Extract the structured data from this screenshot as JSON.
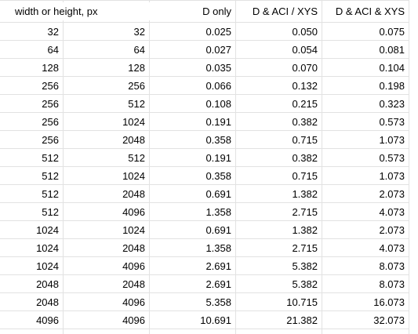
{
  "header": [
    "width or height, px",
    "D only",
    "D & ACI / XYS",
    "D & ACI & XYS"
  ],
  "rows": [
    [
      "32",
      "32",
      "0.025",
      "0.050",
      "0.075"
    ],
    [
      "64",
      "64",
      "0.027",
      "0.054",
      "0.081"
    ],
    [
      "128",
      "128",
      "0.035",
      "0.070",
      "0.104"
    ],
    [
      "256",
      "256",
      "0.066",
      "0.132",
      "0.198"
    ],
    [
      "256",
      "512",
      "0.108",
      "0.215",
      "0.323"
    ],
    [
      "256",
      "1024",
      "0.191",
      "0.382",
      "0.573"
    ],
    [
      "256",
      "2048",
      "0.358",
      "0.715",
      "1.073"
    ],
    [
      "512",
      "512",
      "0.191",
      "0.382",
      "0.573"
    ],
    [
      "512",
      "1024",
      "0.358",
      "0.715",
      "1.073"
    ],
    [
      "512",
      "2048",
      "0.691",
      "1.382",
      "2.073"
    ],
    [
      "512",
      "4096",
      "1.358",
      "2.715",
      "4.073"
    ],
    [
      "1024",
      "1024",
      "0.691",
      "1.382",
      "2.073"
    ],
    [
      "1024",
      "2048",
      "1.358",
      "2.715",
      "4.073"
    ],
    [
      "1024",
      "4096",
      "2.691",
      "5.382",
      "8.073"
    ],
    [
      "2048",
      "2048",
      "2.691",
      "5.382",
      "8.073"
    ],
    [
      "2048",
      "4096",
      "5.358",
      "10.715",
      "16.073"
    ],
    [
      "4096",
      "4096",
      "10.691",
      "21.382",
      "32.073"
    ]
  ]
}
